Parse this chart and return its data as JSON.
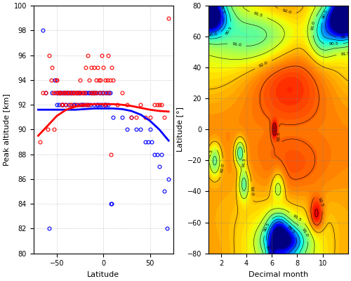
{
  "left_panel": {
    "xlim": [
      -75,
      75
    ],
    "ylim": [
      80,
      100
    ],
    "xlabel": "Latitude",
    "ylabel": "Peak altitude [km]",
    "xticks": [
      -50,
      0,
      50
    ],
    "yticks": [
      80,
      82,
      84,
      86,
      88,
      90,
      92,
      94,
      96,
      98,
      100
    ],
    "blue_scatter_x": [
      -65,
      -62,
      -58,
      -55,
      -52,
      -51,
      -50,
      -49,
      -48,
      -47,
      -46,
      -45,
      -45,
      -44,
      -43,
      -42,
      -41,
      -40,
      -39,
      -38,
      -37,
      -36,
      -35,
      -34,
      -33,
      -32,
      -31,
      -30,
      -29,
      -28,
      -27,
      -26,
      -25,
      -24,
      -23,
      -22,
      -21,
      -20,
      -19,
      -18,
      -17,
      -16,
      -15,
      -14,
      -13,
      -12,
      -11,
      -10,
      -9,
      -8,
      -7,
      -6,
      -5,
      -4,
      -3,
      -2,
      -1,
      0,
      1,
      2,
      3,
      4,
      5,
      6,
      7,
      8,
      9,
      10,
      20,
      25,
      30,
      35,
      40,
      45,
      48,
      50,
      52,
      55,
      58,
      60,
      62,
      65,
      68,
      70
    ],
    "blue_scatter_y": [
      98,
      93,
      82,
      93,
      94,
      93,
      92,
      93,
      92,
      93,
      93,
      92,
      93,
      92,
      93,
      93,
      92,
      93,
      93,
      93,
      92,
      93,
      93,
      93,
      93,
      92,
      92,
      93,
      93,
      92,
      93,
      93,
      93,
      92,
      92,
      92,
      93,
      92,
      93,
      93,
      92,
      93,
      93,
      92,
      93,
      93,
      93,
      92,
      93,
      93,
      92,
      92,
      93,
      92,
      93,
      92,
      93,
      93,
      92,
      93,
      92,
      93,
      92,
      93,
      93,
      84,
      84,
      91,
      91,
      90,
      91,
      90,
      90,
      89,
      89,
      90,
      89,
      88,
      88,
      87,
      88,
      85,
      82,
      86
    ],
    "red_scatter_x": [
      -68,
      -65,
      -62,
      -60,
      -58,
      -56,
      -55,
      -54,
      -53,
      -52,
      -51,
      -50,
      -49,
      -48,
      -47,
      -46,
      -45,
      -44,
      -43,
      -42,
      -41,
      -40,
      -39,
      -38,
      -37,
      -36,
      -35,
      -34,
      -33,
      -32,
      -31,
      -30,
      -29,
      -28,
      -27,
      -26,
      -25,
      -24,
      -23,
      -22,
      -21,
      -20,
      -19,
      -18,
      -17,
      -16,
      -15,
      -14,
      -13,
      -12,
      -11,
      -10,
      -9,
      -8,
      -7,
      -6,
      -5,
      -4,
      -3,
      -2,
      -1,
      0,
      1,
      2,
      3,
      4,
      5,
      6,
      7,
      8,
      9,
      10,
      15,
      20,
      25,
      30,
      35,
      40,
      45,
      50,
      55,
      58,
      60,
      62,
      65,
      70
    ],
    "red_scatter_y": [
      89,
      93,
      93,
      90,
      96,
      94,
      95,
      93,
      90,
      93,
      94,
      94,
      93,
      93,
      93,
      93,
      92,
      92,
      93,
      93,
      93,
      92,
      93,
      93,
      93,
      92,
      93,
      92,
      93,
      93,
      93,
      92,
      93,
      93,
      93,
      92,
      94,
      93,
      93,
      92,
      93,
      93,
      95,
      92,
      96,
      92,
      94,
      93,
      95,
      93,
      93,
      95,
      93,
      94,
      93,
      95,
      94,
      93,
      94,
      96,
      93,
      95,
      92,
      94,
      93,
      94,
      96,
      93,
      94,
      88,
      95,
      94,
      92,
      93,
      92,
      91,
      91,
      92,
      91,
      91,
      92,
      92,
      92,
      92,
      91,
      99
    ],
    "blue_fit_x": [
      -70,
      -60,
      -50,
      -40,
      -30,
      -20,
      -10,
      0,
      10,
      20,
      30,
      40,
      50,
      60,
      70
    ],
    "blue_fit_y": [
      91.6,
      91.6,
      91.6,
      91.6,
      91.6,
      91.65,
      91.7,
      91.7,
      91.7,
      91.65,
      91.5,
      91.2,
      90.7,
      90.0,
      89.1
    ],
    "red_fit_x": [
      -70,
      -60,
      -50,
      -40,
      -30,
      -20,
      -10,
      0,
      10,
      20,
      30,
      40,
      50,
      60,
      70
    ],
    "red_fit_y": [
      89.5,
      90.3,
      91.1,
      91.6,
      91.85,
      92.0,
      92.05,
      92.05,
      92.05,
      92.0,
      91.9,
      91.75,
      91.6,
      91.5,
      91.45
    ],
    "blue_color": "#0000FF",
    "red_color": "#FF0000",
    "bg_color": "#FFFFFF",
    "grid_color": "#AAAAAA",
    "line_width": 2.0
  },
  "right_panel": {
    "xlim": [
      1,
      12
    ],
    "ylim": [
      -80,
      80
    ],
    "xlabel": "Decimal month",
    "ylabel": "Latitude [°]",
    "xticks": [
      2,
      4,
      6,
      8,
      10
    ],
    "yticks": [
      -80,
      -60,
      -40,
      -20,
      0,
      20,
      40,
      60,
      80
    ],
    "contour_levels": [
      89.5,
      90.0,
      90.5,
      91.0,
      91.5,
      92.0,
      92.5,
      93.0
    ],
    "colormap": "jet",
    "vmin": 88.5,
    "vmax": 93.5
  }
}
